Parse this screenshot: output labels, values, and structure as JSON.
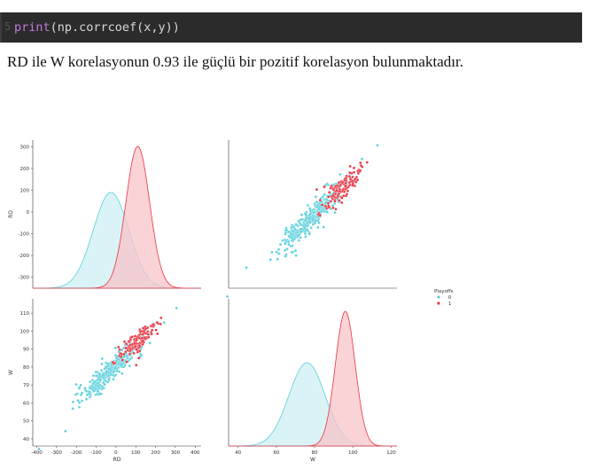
{
  "code": {
    "keyword": "print",
    "rest": "(np.corrcoef(x,y))"
  },
  "prose": "RD ile W korelasyonun 0.93 ile güçlü bir pozitif korelasyon bulunmaktadır.",
  "colors": {
    "class0": "#5bd0dc",
    "class1": "#e8333f",
    "class0_fill": "#cdeff3",
    "class1_fill": "#f8c4c9"
  },
  "chart_data": {
    "type": "scatter",
    "subtype": "pairplot",
    "variables": [
      "RD",
      "W"
    ],
    "hue": "Playoffs",
    "legend": {
      "title": "Playoffs",
      "labels": [
        "0",
        "1"
      ],
      "placement": "right"
    },
    "axes": {
      "RD": {
        "label": "RD",
        "ticks": [
          -400,
          -300,
          -200,
          -100,
          0,
          100,
          200,
          300,
          400
        ],
        "yticks": [
          -300,
          -200,
          -100,
          0,
          100,
          200,
          300
        ],
        "range": [
          -420,
          430
        ]
      },
      "W": {
        "label": "W",
        "ticks": [
          40,
          60,
          80,
          100,
          120
        ],
        "yticks": [
          40,
          50,
          60,
          70,
          80,
          90,
          100,
          110
        ],
        "range": [
          35,
          123
        ]
      }
    },
    "kde": {
      "RD": {
        "0": {
          "mean": -25,
          "sd": 90
        },
        "1": {
          "mean": 110,
          "sd": 60
        }
      },
      "W": {
        "0": {
          "mean": 76,
          "sd": 9.5
        },
        "1": {
          "mean": 96,
          "sd": 5.2
        }
      }
    },
    "scatter_summary": {
      "relation": "W ≈ 81 + 0.1·RD",
      "correlation": 0.93,
      "n_class0": 330,
      "n_class1": 130
    },
    "ylim_kde_rd": [
      0,
      1
    ]
  }
}
